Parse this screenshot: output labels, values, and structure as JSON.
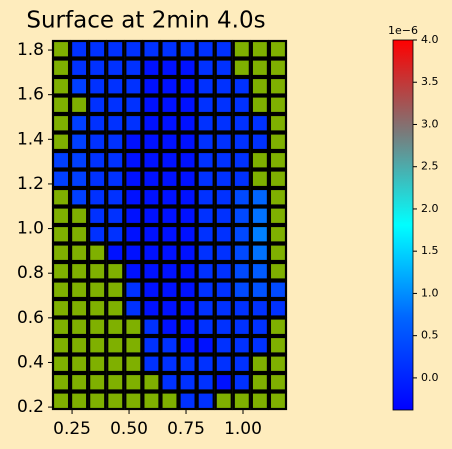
{
  "chart_data": {
    "type": "heatmap",
    "title": "Surface at 2min 4.0s",
    "xlim": [
      0.162,
      1.193
    ],
    "ylim": [
      0.187,
      1.845
    ],
    "xticks": [
      {
        "value": 0.25,
        "label": "0.25"
      },
      {
        "value": 0.5,
        "label": "0.50"
      },
      {
        "value": 0.75,
        "label": "0.75"
      },
      {
        "value": 1.0,
        "label": "1.00"
      }
    ],
    "yticks": [
      0.2,
      0.4,
      0.6,
      0.8,
      {
        "value": 1.0,
        "label": "1.0"
      },
      1.2,
      1.4,
      1.6,
      1.8
    ],
    "mask_color": "#7fb000",
    "cell_edge_color": "#000000",
    "colormap": [
      "#0000ff",
      "#0066ff",
      "#00ffff",
      "#7a7a7a",
      "#ff0000"
    ],
    "clim": [
      -0.38,
      4.0
    ],
    "colorbar_offset_label": "1e−6",
    "colorbar_ticks": [
      {
        "value": 0.0,
        "label": "0.0"
      },
      0.5,
      {
        "value": 1.0,
        "label": "1.0"
      },
      1.5,
      {
        "value": 2.0,
        "label": "2.0"
      },
      2.5,
      {
        "value": 3.0,
        "label": "3.0"
      },
      3.5,
      {
        "value": 4.0,
        "label": "4.0"
      }
    ],
    "values": [
      [
        null,
        0.15,
        0.15,
        0.15,
        0.15,
        0.15,
        0.15,
        0.15,
        0.15,
        0.15,
        null,
        null,
        null
      ],
      [
        null,
        0.15,
        0.15,
        0.15,
        0.15,
        -0.2,
        -0.2,
        -0.2,
        0.15,
        0.15,
        null,
        null,
        null
      ],
      [
        null,
        0.3,
        0.15,
        0.15,
        0.15,
        -0.2,
        -0.2,
        -0.2,
        0.15,
        0.15,
        0.15,
        null,
        null
      ],
      [
        null,
        null,
        0.15,
        0.15,
        0.15,
        -0.2,
        -0.2,
        -0.2,
        0.15,
        0.15,
        0.15,
        null,
        null
      ],
      [
        null,
        0.3,
        0.15,
        0.15,
        0.15,
        -0.2,
        -0.2,
        -0.2,
        0.15,
        0.15,
        0.15,
        0.15,
        null
      ],
      [
        null,
        0.3,
        0.15,
        0.15,
        -0.2,
        -0.2,
        -0.2,
        -0.2,
        0.15,
        0.15,
        0.15,
        0.15,
        null
      ],
      [
        0.3,
        0.3,
        0.15,
        0.15,
        -0.2,
        -0.2,
        -0.2,
        -0.2,
        0.15,
        0.15,
        0.15,
        null,
        null
      ],
      [
        0.3,
        0.3,
        0.15,
        0.15,
        -0.2,
        -0.2,
        -0.2,
        -0.2,
        0.15,
        0.15,
        0.15,
        null,
        null
      ],
      [
        null,
        0.3,
        0.15,
        0.15,
        -0.2,
        -0.2,
        -0.2,
        -0.2,
        0.15,
        0.15,
        0.4,
        0.7,
        null
      ],
      [
        null,
        null,
        0.15,
        0.15,
        -0.2,
        -0.2,
        -0.2,
        -0.2,
        0.15,
        0.15,
        0.4,
        0.8,
        null
      ],
      [
        null,
        null,
        0.15,
        0.15,
        -0.2,
        -0.2,
        -0.2,
        -0.2,
        0.15,
        0.15,
        0.4,
        0.9,
        null
      ],
      [
        null,
        null,
        null,
        -0.2,
        -0.2,
        -0.2,
        -0.2,
        -0.2,
        0.15,
        0.15,
        0.4,
        0.8,
        null
      ],
      [
        null,
        null,
        null,
        null,
        -0.2,
        -0.2,
        -0.2,
        -0.2,
        0.15,
        0.15,
        0.4,
        0.6,
        null
      ],
      [
        null,
        null,
        null,
        null,
        0.15,
        -0.2,
        -0.2,
        -0.2,
        0.15,
        0.15,
        0.4,
        0.5,
        0.4
      ],
      [
        null,
        null,
        null,
        null,
        0.15,
        -0.2,
        -0.2,
        -0.2,
        0.15,
        0.15,
        0.15,
        0.15,
        0.15
      ],
      [
        null,
        null,
        null,
        null,
        null,
        0.15,
        -0.2,
        -0.2,
        0.15,
        0.15,
        0.15,
        0.15,
        null
      ],
      [
        null,
        null,
        null,
        null,
        null,
        0.15,
        0.15,
        -0.2,
        -0.2,
        0.15,
        0.15,
        0.15,
        null
      ],
      [
        null,
        null,
        null,
        null,
        null,
        0.15,
        0.15,
        0.15,
        0.15,
        0.15,
        0.15,
        null,
        null
      ],
      [
        null,
        null,
        null,
        null,
        null,
        null,
        0.15,
        0.15,
        0.15,
        -0.2,
        0.15,
        null,
        null
      ],
      [
        null,
        null,
        null,
        null,
        null,
        null,
        null,
        0.15,
        0.15,
        null,
        null,
        null,
        null
      ]
    ]
  }
}
